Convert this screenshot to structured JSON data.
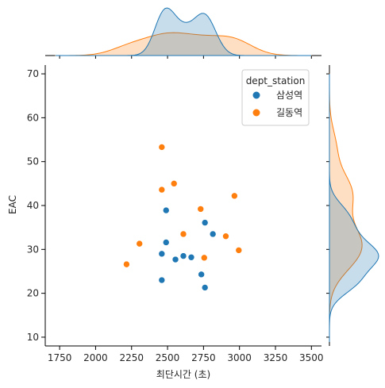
{
  "chart_data": {
    "type": "scatter",
    "kind": "jointplot",
    "xlabel": "최단시간 (초)",
    "ylabel": "EAC",
    "xlim": [
      1650,
      3570
    ],
    "ylim": [
      8,
      72
    ],
    "xticks": [
      1750,
      2000,
      2250,
      2500,
      2750,
      3000,
      3250,
      3500
    ],
    "yticks": [
      10,
      20,
      30,
      40,
      50,
      60,
      70
    ],
    "marginals": "kde",
    "grid": false,
    "legend": {
      "title": "dept_station",
      "placement": "top-right"
    },
    "series": [
      {
        "name": "삼성역",
        "color": "#1f77b4",
        "points": [
          {
            "x": 2490,
            "y": 38.9
          },
          {
            "x": 2490,
            "y": 31.6
          },
          {
            "x": 2460,
            "y": 29.0
          },
          {
            "x": 2460,
            "y": 23.0
          },
          {
            "x": 2555,
            "y": 27.7
          },
          {
            "x": 2610,
            "y": 28.5
          },
          {
            "x": 2665,
            "y": 28.2
          },
          {
            "x": 2735,
            "y": 24.3
          },
          {
            "x": 2760,
            "y": 21.3
          },
          {
            "x": 2760,
            "y": 36.1
          },
          {
            "x": 2815,
            "y": 33.5
          }
        ]
      },
      {
        "name": "길동역",
        "color": "#ff7f0e",
        "points": [
          {
            "x": 2460,
            "y": 53.3
          },
          {
            "x": 2460,
            "y": 43.6
          },
          {
            "x": 2545,
            "y": 45.0
          },
          {
            "x": 2610,
            "y": 33.5
          },
          {
            "x": 2730,
            "y": 39.2
          },
          {
            "x": 2755,
            "y": 28.1
          },
          {
            "x": 2965,
            "y": 42.2
          },
          {
            "x": 2905,
            "y": 33.0
          },
          {
            "x": 2995,
            "y": 29.8
          },
          {
            "x": 2305,
            "y": 31.3
          },
          {
            "x": 2215,
            "y": 26.6
          }
        ]
      }
    ]
  }
}
